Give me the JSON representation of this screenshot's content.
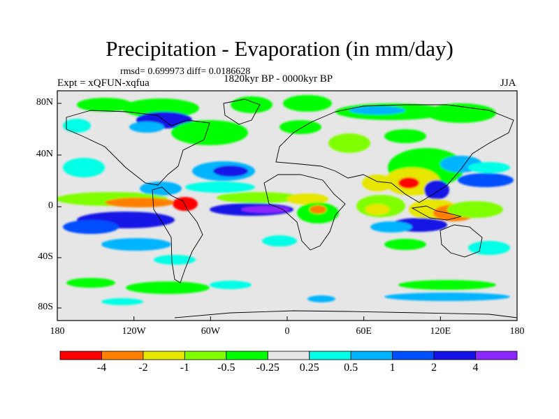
{
  "title": "Precipitation - Evaporation (in mm/day)",
  "stats": "rmsd= 0.699973  diff= 0.0186628",
  "period": "1820kyr BP - 0000kyr BP",
  "experiment": "Expt = xQFUN-xqfua",
  "season": "JJA",
  "map": {
    "lat_labels": [
      "80N",
      "40N",
      "0",
      "40S",
      "80S"
    ],
    "lon_labels": [
      "180",
      "120W",
      "60W",
      "0",
      "60E",
      "120E",
      "180"
    ],
    "background": "#e6e6e6"
  },
  "colorbar": {
    "colors": [
      "#ff0000",
      "#ff8000",
      "#e6e600",
      "#80ff00",
      "#00ff00",
      "#e6e6e6",
      "#00ffe6",
      "#00b4ff",
      "#0050ff",
      "#1414e6",
      "#8c28ff"
    ],
    "labels": [
      "-4",
      "-2",
      "-1",
      "-0.5",
      "-0.25",
      "0.25",
      "0.5",
      "1",
      "2",
      "4"
    ]
  }
}
